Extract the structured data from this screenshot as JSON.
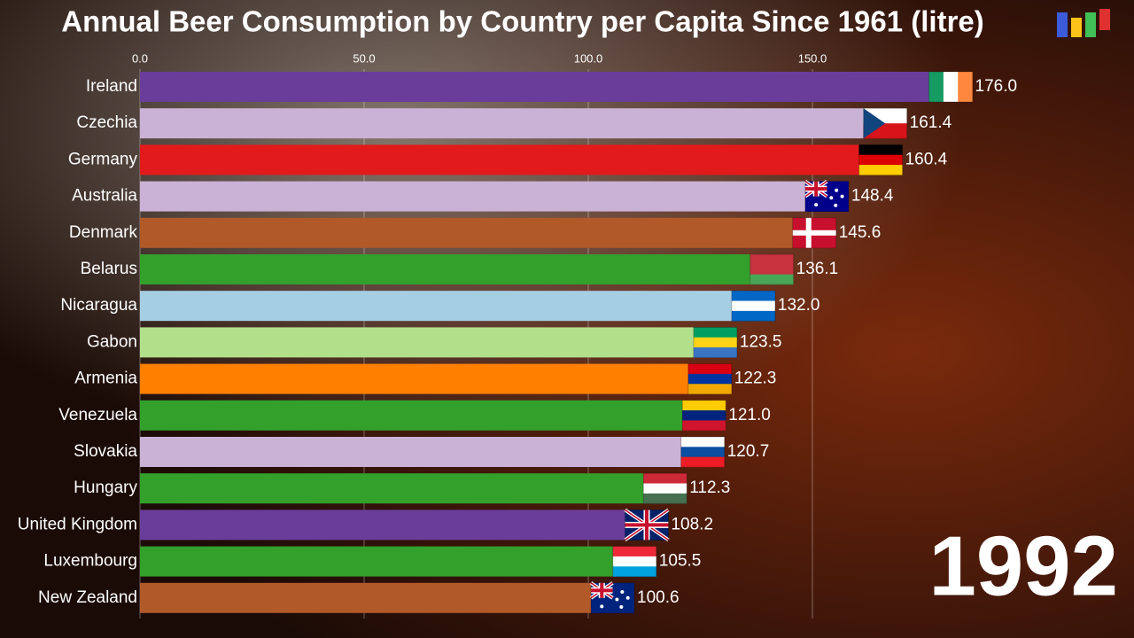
{
  "chart_data": {
    "type": "barh",
    "title": "Annual Beer Consumption by Country per Capita Since 1961 (litre)",
    "annotation": "1992",
    "categories": [
      "Ireland",
      "Czechia",
      "Germany",
      "Australia",
      "Denmark",
      "Belarus",
      "Nicaragua",
      "Gabon",
      "Armenia",
      "Venezuela",
      "Slovakia",
      "Hungary",
      "United Kingdom",
      "Luxembourg",
      "New Zealand"
    ],
    "values": [
      176.0,
      161.4,
      160.4,
      148.4,
      145.6,
      136.1,
      132.0,
      123.5,
      122.3,
      121.0,
      120.7,
      112.3,
      108.2,
      105.5,
      100.6
    ],
    "value_labels": [
      "176.0",
      "161.4",
      "160.4",
      "148.4",
      "145.6",
      "136.1",
      "132.0",
      "123.5",
      "122.3",
      "121.0",
      "120.7",
      "112.3",
      "108.2",
      "105.5",
      "100.6"
    ],
    "colors": [
      "#6a3d9a",
      "#cab2d6",
      "#e31a1c",
      "#cab2d6",
      "#b15928",
      "#33a02c",
      "#a6cee3",
      "#b2df8a",
      "#ff7f00",
      "#33a02c",
      "#cab2d6",
      "#33a02c",
      "#6a3d9a",
      "#33a02c",
      "#b15928"
    ],
    "xlim": [
      0,
      200
    ],
    "xticks": [
      {
        "value": 0,
        "label": "0.0"
      },
      {
        "value": 50,
        "label": "50.0"
      },
      {
        "value": 100,
        "label": "100.0"
      },
      {
        "value": 150,
        "label": "150.0"
      }
    ],
    "grid": true
  }
}
